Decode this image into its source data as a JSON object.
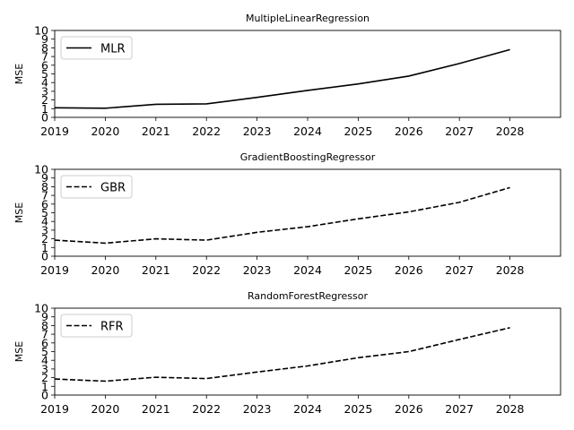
{
  "chart_data": [
    {
      "type": "line",
      "title": "MultipleLinearRegression",
      "xlabel": "",
      "ylabel": "MSE",
      "x": [
        2019,
        2020,
        2021,
        2022,
        2023,
        2024,
        2025,
        2026,
        2027,
        2028
      ],
      "xlim": [
        2019,
        2029
      ],
      "ylim": [
        0,
        10
      ],
      "xticks": [
        "2019",
        "2020",
        "2021",
        "2022",
        "2023",
        "2024",
        "2025",
        "2026",
        "2027",
        "2028"
      ],
      "yticks": [
        "0",
        "1",
        "2",
        "3",
        "4",
        "5",
        "6",
        "7",
        "8",
        "9",
        "10"
      ],
      "legend": "upper-left",
      "grid": false,
      "series": [
        {
          "name": "MLR",
          "style": "solid",
          "color": "#000000",
          "values": [
            1.1,
            1.05,
            1.5,
            1.55,
            2.3,
            3.1,
            3.85,
            4.75,
            6.2,
            7.8
          ]
        }
      ]
    },
    {
      "type": "line",
      "title": "GradientBoostingRegressor",
      "xlabel": "",
      "ylabel": "MSE",
      "x": [
        2019,
        2020,
        2021,
        2022,
        2023,
        2024,
        2025,
        2026,
        2027,
        2028
      ],
      "xlim": [
        2019,
        2029
      ],
      "ylim": [
        0,
        10
      ],
      "xticks": [
        "2019",
        "2020",
        "2021",
        "2022",
        "2023",
        "2024",
        "2025",
        "2026",
        "2027",
        "2028"
      ],
      "yticks": [
        "0",
        "1",
        "2",
        "3",
        "4",
        "5",
        "6",
        "7",
        "8",
        "9",
        "10"
      ],
      "legend": "upper-left",
      "grid": false,
      "series": [
        {
          "name": "GBR",
          "style": "dashed",
          "color": "#000000",
          "values": [
            1.85,
            1.5,
            2.0,
            1.85,
            2.75,
            3.4,
            4.3,
            5.1,
            6.2,
            7.9
          ]
        }
      ]
    },
    {
      "type": "line",
      "title": "RandomForestRegressor",
      "xlabel": "",
      "ylabel": "MSE",
      "x": [
        2019,
        2020,
        2021,
        2022,
        2023,
        2024,
        2025,
        2026,
        2027,
        2028
      ],
      "xlim": [
        2019,
        2029
      ],
      "ylim": [
        0,
        10
      ],
      "xticks": [
        "2019",
        "2020",
        "2021",
        "2022",
        "2023",
        "2024",
        "2025",
        "2026",
        "2027",
        "2028"
      ],
      "yticks": [
        "0",
        "1",
        "2",
        "3",
        "4",
        "5",
        "6",
        "7",
        "8",
        "9",
        "10"
      ],
      "legend": "upper-left",
      "grid": false,
      "series": [
        {
          "name": "RFR",
          "style": "dashed",
          "color": "#000000",
          "values": [
            1.85,
            1.6,
            2.05,
            1.9,
            2.65,
            3.35,
            4.3,
            5.0,
            6.4,
            7.75
          ]
        }
      ]
    }
  ]
}
